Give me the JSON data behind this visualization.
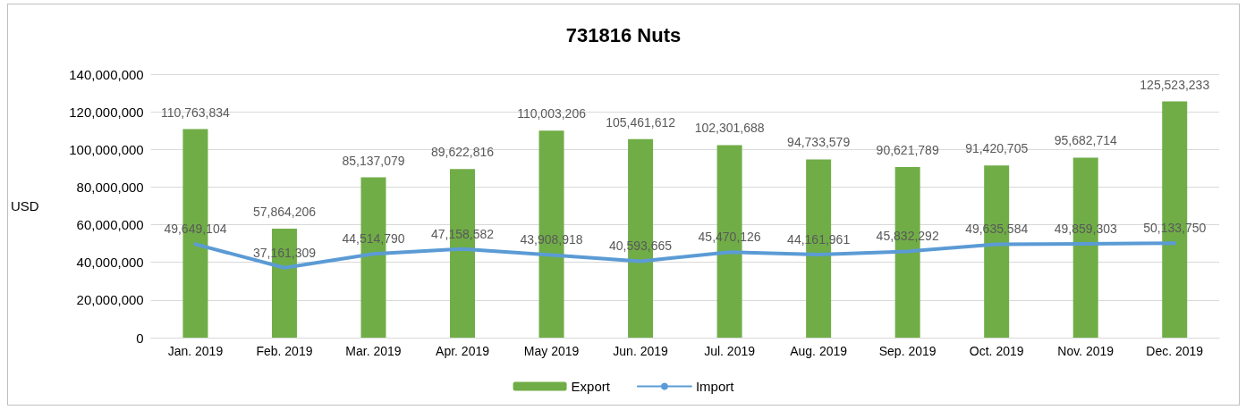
{
  "chart_data": {
    "type": "bar",
    "title": "731816 Nuts",
    "ylabel": "USD",
    "categories": [
      "Jan. 2019",
      "Feb. 2019",
      "Mar. 2019",
      "Apr. 2019",
      "May 2019",
      "Jun. 2019",
      "Jul. 2019",
      "Aug. 2019",
      "Sep. 2019",
      "Oct. 2019",
      "Nov. 2019",
      "Dec. 2019"
    ],
    "series": [
      {
        "name": "Export",
        "color": "#70ad47",
        "values": [
          110763834,
          57864206,
          85137079,
          89622816,
          110003206,
          105461612,
          102301688,
          94733579,
          90621789,
          91420705,
          95682714,
          125523233
        ],
        "value_labels": [
          "110,763,834",
          "57,864,206",
          "85,137,079",
          "89,622,816",
          "110,003,206",
          "105,461,612",
          "102,301,688",
          "94,733,579",
          "90,621,789",
          "91,420,705",
          "95,682,714",
          "125,523,233"
        ]
      },
      {
        "name": "Import",
        "type": "line",
        "color": "#5b9bd5",
        "values": [
          49649104,
          37161309,
          44514790,
          47158582,
          43908918,
          40593665,
          45470126,
          44161961,
          45832292,
          49635584,
          49859303,
          50133750
        ],
        "value_labels": [
          "49,649,104",
          "37,161,309",
          "44,514,790",
          "47,158,582",
          "43,908,918",
          "40,593,665",
          "45,470,126",
          "44,161,961",
          "45,832,292",
          "49,635,584",
          "49,859,303",
          "50,133,750"
        ]
      }
    ],
    "ylim": [
      0,
      140000000
    ],
    "yticks": [
      0,
      {
        "value": 20000000,
        "label": "20,000,000"
      },
      {
        "value": 40000000,
        "label": "40,000,000"
      },
      {
        "value": 60000000,
        "label": "60,000,000"
      },
      {
        "value": 80000000,
        "label": "80,000,000"
      },
      {
        "value": 100000000,
        "label": "100,000,000"
      },
      {
        "value": 120000000,
        "label": "120,000,000"
      },
      {
        "value": 140000000,
        "label": "140,000,000"
      }
    ],
    "grid": "y",
    "legend": "bottom",
    "marker": "none"
  }
}
